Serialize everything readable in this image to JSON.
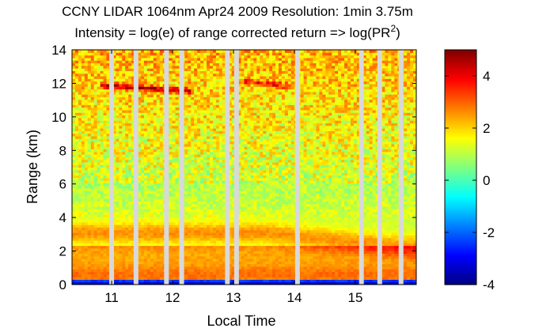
{
  "chart_data": {
    "type": "heatmap",
    "title": "CCNY LIDAR 1064nm Apr24 2009 Resolution: 1min 3.75m",
    "subtitle_prefix": "Intensity = log(e) of range corrected return => log(PR",
    "subtitle_sup": "2",
    "subtitle_suffix": ")",
    "xlabel": "Local Time",
    "ylabel": "Range (km)",
    "xlim": [
      10.35,
      16.0
    ],
    "ylim": [
      0,
      14
    ],
    "xticks": [
      11,
      12,
      13,
      14,
      15
    ],
    "yticks": [
      0,
      2,
      4,
      6,
      8,
      10,
      12,
      14
    ],
    "colorbar": {
      "range": [
        -4,
        5
      ],
      "ticks": [
        -4,
        -2,
        0,
        2,
        4
      ],
      "colormap": "jet",
      "colors": [
        "#00008f",
        "#0000ff",
        "#0080ff",
        "#00ffff",
        "#80ff80",
        "#ffff00",
        "#ff8000",
        "#ff0000",
        "#800000"
      ]
    },
    "data_gaps_time": [
      11.0,
      11.4,
      11.9,
      12.15,
      12.9,
      13.05,
      14.05,
      15.1,
      15.4,
      15.75
    ],
    "features": [
      {
        "name": "cirrus layer",
        "time_range": [
          10.8,
          12.3
        ],
        "range_km": [
          11.6,
          12.2
        ],
        "value": 4.5
      },
      {
        "name": "cirrus layer",
        "time_range": [
          13.2,
          14.0
        ],
        "range_km": [
          11.8,
          12.5
        ],
        "value": 3.3
      },
      {
        "name": "boundary layer top",
        "time_range": [
          10.35,
          16.0
        ],
        "range_km": [
          2.2,
          3.6
        ],
        "value": 2.7
      },
      {
        "name": "lower aerosol layer",
        "time_range": [
          10.35,
          16.0
        ],
        "range_km": [
          0.3,
          1.4
        ],
        "value": 2.6
      }
    ]
  }
}
